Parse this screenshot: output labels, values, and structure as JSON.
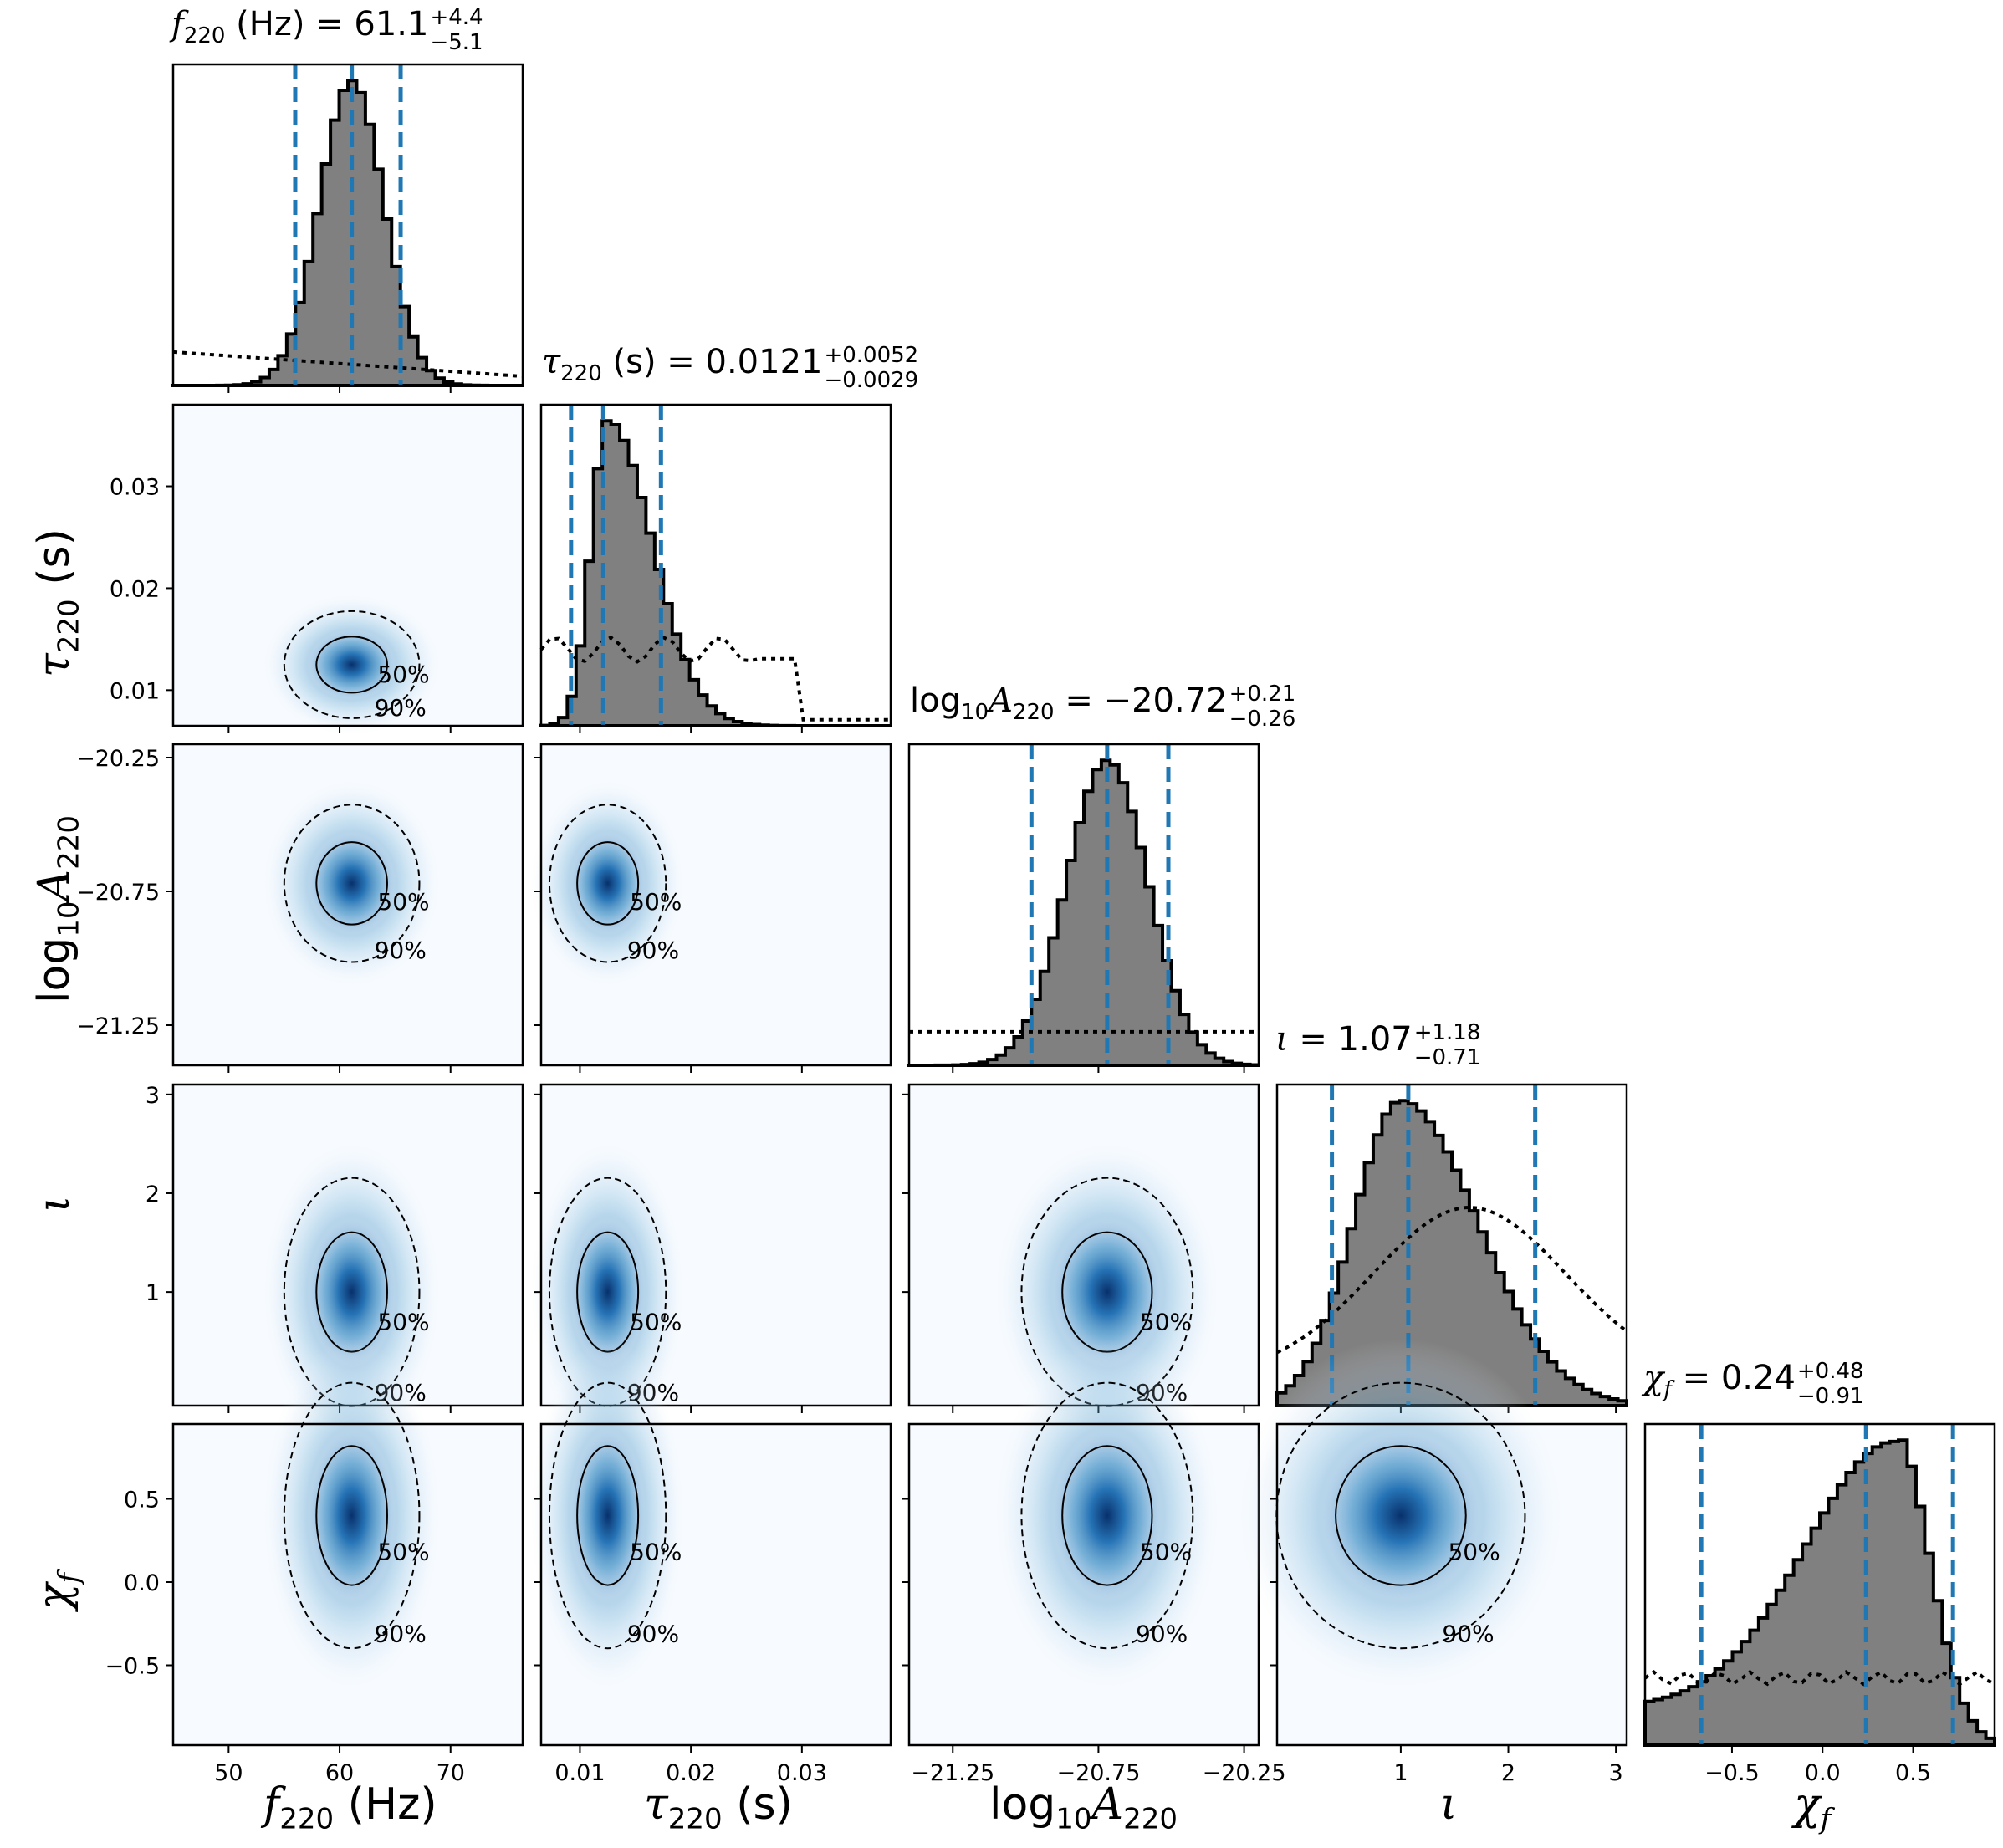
{
  "chart_data": {
    "type": "corner",
    "parameters": [
      {
        "key": "f220",
        "symbol": "f",
        "sub": "220",
        "unit": " (Hz)",
        "range": [
          45,
          76.5
        ],
        "ticks": [
          50,
          60,
          70
        ],
        "tick_labels": [
          "50",
          "60",
          "70"
        ],
        "title_value": "61.1",
        "err_plus": "+4.4",
        "err_minus": "−5.1",
        "quantiles": [
          56.0,
          61.1,
          65.5
        ],
        "mean": 61.1,
        "sd": 2.9
      },
      {
        "key": "tau220",
        "symbol": "τ",
        "sub": "220",
        "unit": " (s)",
        "range": [
          0.0065,
          0.038
        ],
        "ticks": [
          0.01,
          0.02,
          0.03
        ],
        "tick_labels": [
          "0.01",
          "0.02",
          "0.03"
        ],
        "title_value": "0.0121",
        "err_plus": "+0.0052",
        "err_minus": "−0.0029",
        "quantiles": [
          0.0092,
          0.0121,
          0.0173
        ],
        "mean": 0.0125,
        "sd": 0.0025
      },
      {
        "key": "logA220",
        "symbol": "log",
        "sub": "10",
        "symbol2": "A",
        "sub2": "220",
        "unit": "",
        "range": [
          -21.4,
          -20.2
        ],
        "ticks": [
          -21.25,
          -20.75,
          -20.25
        ],
        "tick_labels": [
          "−21.25",
          "−20.75",
          "−20.25"
        ],
        "title_value": "−20.72",
        "err_plus": "+0.21",
        "err_minus": "−0.26",
        "quantiles": [
          -20.98,
          -20.72,
          -20.51
        ],
        "mean": -20.72,
        "sd": 0.14
      },
      {
        "key": "iota",
        "symbol": "ι",
        "sub": "",
        "unit": "",
        "range": [
          -0.15,
          3.1
        ],
        "ticks": [
          1,
          2,
          3
        ],
        "tick_labels": [
          "1",
          "2",
          "3"
        ],
        "title_value": "1.07",
        "err_plus": "+1.18",
        "err_minus": "−0.71",
        "quantiles": [
          0.36,
          1.07,
          2.25
        ],
        "mean": 1.0,
        "sd": 0.55
      },
      {
        "key": "chif",
        "symbol": "χ",
        "sub": "f",
        "unit": "",
        "range": [
          -0.98,
          0.95
        ],
        "ticks": [
          -0.5,
          0.0,
          0.5
        ],
        "tick_labels": [
          "−0.5",
          "0.0",
          "0.5"
        ],
        "title_value": "0.24",
        "err_plus": "+0.48",
        "err_minus": "−0.91",
        "quantiles": [
          -0.67,
          0.24,
          0.72
        ],
        "mean": 0.4,
        "sd": 0.38
      }
    ],
    "contour_labels": [
      "50%",
      "90%"
    ],
    "grid": false,
    "colors": {
      "hist_fill": "#808080",
      "hist_edge": "#000000",
      "quantile_line": "#1f77b4",
      "density_dark": "#08306b",
      "density_light": "#f7fbff"
    }
  },
  "axis_labels": {
    "x": [
      "f220 (Hz)",
      "τ220 (s)",
      "log10A220",
      "ι",
      "χf"
    ],
    "y": [
      "τ220 (s)",
      "log10A220",
      "ι",
      "χf"
    ]
  }
}
